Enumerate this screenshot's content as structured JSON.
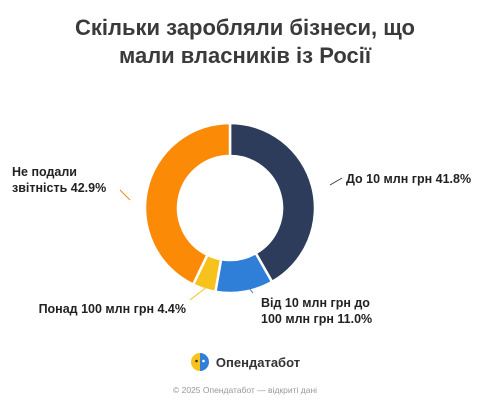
{
  "title_line1": "Скільки заробляли бізнеси, що",
  "title_line2": "мали власників із Росії",
  "brand": {
    "name": "Опендатабот"
  },
  "footer": "© 2025 Опендатабот — відкриті дані",
  "chart_data": {
    "type": "pie",
    "variant": "donut",
    "title": "Скільки заробляли бізнеси, що мали власників із Росії",
    "slices": [
      {
        "label_lines": [
          "До 10 млн грн 41.8%"
        ],
        "value": 41.8,
        "color": "#2c3c5a"
      },
      {
        "label_lines": [
          "Від 10 млн грн до",
          "100 млн грн 11.0%"
        ],
        "value": 11.0,
        "color": "#2f7ed8"
      },
      {
        "label_lines": [
          "Понад 100 млн грн 4.4%"
        ],
        "value": 4.4,
        "color": "#f7c21b"
      },
      {
        "label_lines": [
          "Не подали",
          "звітність 42.9%"
        ],
        "value": 42.9,
        "color": "#fb8a06"
      }
    ]
  }
}
